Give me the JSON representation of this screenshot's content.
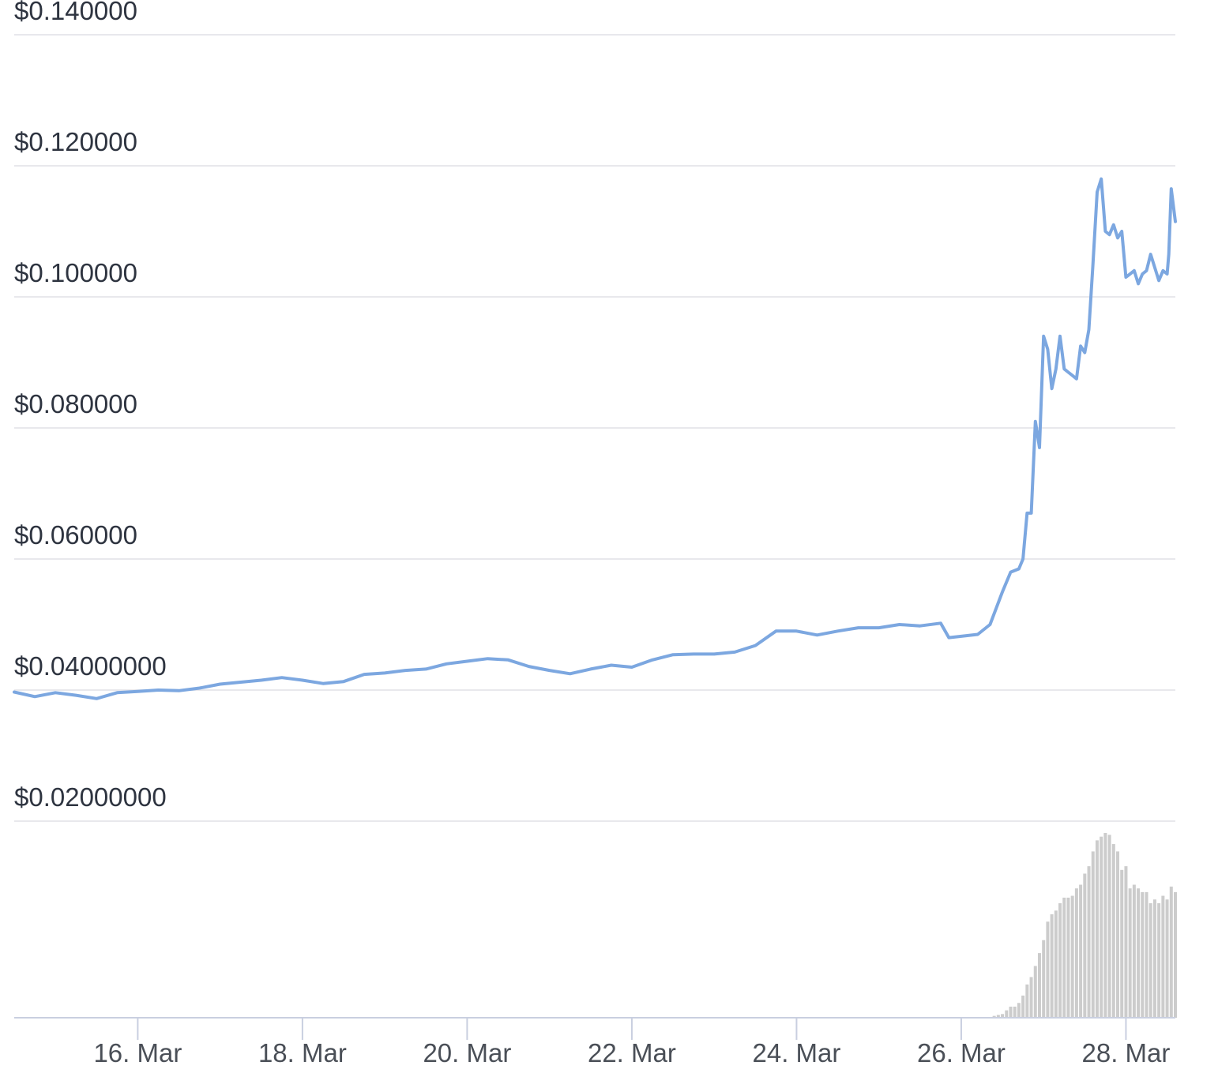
{
  "chart_data": {
    "type": "line",
    "title": "",
    "xlabel": "",
    "ylabel": "",
    "y_ticks": [
      "$0.140000",
      "$0.120000",
      "$0.100000",
      "$0.080000",
      "$0.060000",
      "$0.04000000",
      "$0.02000000"
    ],
    "y_tick_values": [
      0.14,
      0.12,
      0.1,
      0.08,
      0.06,
      0.04,
      0.02
    ],
    "x_ticks": [
      "16. Mar",
      "18. Mar",
      "20. Mar",
      "22. Mar",
      "24. Mar",
      "26. Mar",
      "28. Mar"
    ],
    "x_tick_days": [
      16,
      18,
      20,
      22,
      24,
      26,
      28
    ],
    "xlim_days": [
      14.5,
      28.6
    ],
    "ylim": [
      0.02,
      0.14
    ],
    "grid": true,
    "series": [
      {
        "color": "#7ca7e0",
        "x_days": [
          14.5,
          14.75,
          15.0,
          15.25,
          15.5,
          15.75,
          16.0,
          16.25,
          16.5,
          16.75,
          17.0,
          17.25,
          17.5,
          17.75,
          18.0,
          18.25,
          18.5,
          18.75,
          19.0,
          19.25,
          19.5,
          19.75,
          20.0,
          20.25,
          20.5,
          20.75,
          21.0,
          21.25,
          21.5,
          21.75,
          22.0,
          22.25,
          22.5,
          22.75,
          23.0,
          23.25,
          23.5,
          23.75,
          24.0,
          24.25,
          24.5,
          24.75,
          25.0,
          25.25,
          25.5,
          25.75,
          25.85,
          26.0,
          26.2,
          26.35,
          26.5,
          26.6,
          26.7,
          26.75,
          26.8,
          26.85,
          26.9,
          26.95,
          27.0,
          27.05,
          27.1,
          27.15,
          27.2,
          27.25,
          27.3,
          27.35,
          27.4,
          27.45,
          27.5,
          27.55,
          27.6,
          27.65,
          27.7,
          27.75,
          27.8,
          27.85,
          27.9,
          27.95,
          28.0,
          28.05,
          28.1,
          28.15,
          28.2,
          28.25,
          28.3,
          28.35,
          28.4,
          28.45,
          28.5,
          28.52,
          28.55,
          28.6
        ],
        "y_values": [
          0.0397,
          0.039,
          0.0396,
          0.0392,
          0.0387,
          0.0396,
          0.0398,
          0.04,
          0.0399,
          0.0403,
          0.0409,
          0.0412,
          0.0415,
          0.0419,
          0.0415,
          0.041,
          0.0413,
          0.0424,
          0.0426,
          0.043,
          0.0432,
          0.044,
          0.0444,
          0.0448,
          0.0446,
          0.0436,
          0.043,
          0.0425,
          0.0432,
          0.0438,
          0.0435,
          0.0446,
          0.0454,
          0.0455,
          0.0455,
          0.0458,
          0.0468,
          0.049,
          0.049,
          0.0484,
          0.049,
          0.0495,
          0.0495,
          0.05,
          0.0498,
          0.0502,
          0.048,
          0.0482,
          0.0485,
          0.05,
          0.055,
          0.058,
          0.0585,
          0.06,
          0.067,
          0.067,
          0.081,
          0.077,
          0.094,
          0.092,
          0.086,
          0.089,
          0.094,
          0.089,
          0.0885,
          0.088,
          0.0875,
          0.0925,
          0.0915,
          0.095,
          0.105,
          0.116,
          0.118,
          0.11,
          0.1095,
          0.111,
          0.109,
          0.11,
          0.103,
          0.1035,
          0.104,
          0.102,
          0.1035,
          0.104,
          0.1065,
          0.1045,
          0.1025,
          0.104,
          0.1035,
          0.1065,
          0.1165,
          0.1115
        ]
      }
    ],
    "volume": {
      "color": "#cccccc",
      "note_units": "relative",
      "x_days": [
        26.4,
        26.45,
        26.5,
        26.55,
        26.6,
        26.65,
        26.7,
        26.75,
        26.8,
        26.85,
        26.9,
        26.95,
        27.0,
        27.05,
        27.1,
        27.15,
        27.2,
        27.25,
        27.3,
        27.35,
        27.4,
        27.45,
        27.5,
        27.55,
        27.6,
        27.65,
        27.7,
        27.75,
        27.8,
        27.85,
        27.9,
        27.95,
        28.0,
        28.05,
        28.1,
        28.15,
        28.2,
        28.25,
        28.3,
        28.35,
        28.4,
        28.45,
        28.5,
        28.55,
        28.6
      ],
      "values": [
        0.01,
        0.015,
        0.02,
        0.04,
        0.06,
        0.06,
        0.08,
        0.12,
        0.18,
        0.22,
        0.28,
        0.35,
        0.42,
        0.52,
        0.56,
        0.58,
        0.62,
        0.65,
        0.65,
        0.66,
        0.7,
        0.72,
        0.78,
        0.82,
        0.9,
        0.96,
        0.98,
        1.0,
        0.99,
        0.94,
        0.9,
        0.8,
        0.82,
        0.7,
        0.72,
        0.7,
        0.68,
        0.68,
        0.62,
        0.64,
        0.62,
        0.66,
        0.64,
        0.71,
        0.68
      ]
    }
  }
}
